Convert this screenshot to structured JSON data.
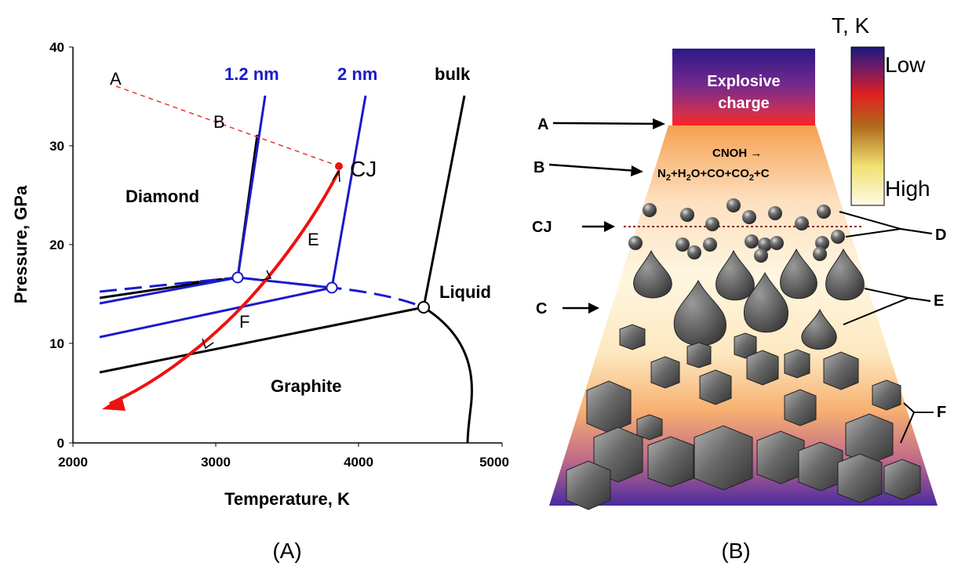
{
  "panel_a": {
    "caption": "(A)",
    "xlabel": "Temperature, K",
    "ylabel": "Pressure, GPa",
    "xticks": [
      "2000",
      "3000",
      "4000",
      "5000"
    ],
    "yticks": [
      "0",
      "10",
      "20",
      "30",
      "40"
    ],
    "region_diamond": "Diamond",
    "region_graphite": "Graphite",
    "region_liquid": "Liquid",
    "curve_label_12": "1.2 nm",
    "curve_label_2": "2 nm",
    "curve_label_bulk": "bulk",
    "point_a": "A",
    "point_b": "B",
    "point_cj": "CJ",
    "point_e": "E",
    "point_f": "F"
  },
  "panel_b": {
    "caption": "(B)",
    "charge_line1": "Explosive",
    "charge_line2": "charge",
    "reaction_line1": "CNOH →",
    "reaction_n": "N",
    "reaction_sub2": "2",
    "reaction_h": "+H",
    "reaction_sub2b": "2",
    "reaction_o": "O+CO+CO",
    "reaction_sub2c": "2",
    "reaction_end": "+C",
    "colorbar_title": "T, K",
    "colorbar_low": "Low",
    "colorbar_high": "High",
    "label_a": "A",
    "label_b": "B",
    "label_cj": "CJ",
    "label_c": "C",
    "label_d": "D",
    "label_e": "E",
    "label_f": "F"
  },
  "colors": {
    "blue": "#1a1acc",
    "red": "#ee1111",
    "black": "#000000"
  }
}
